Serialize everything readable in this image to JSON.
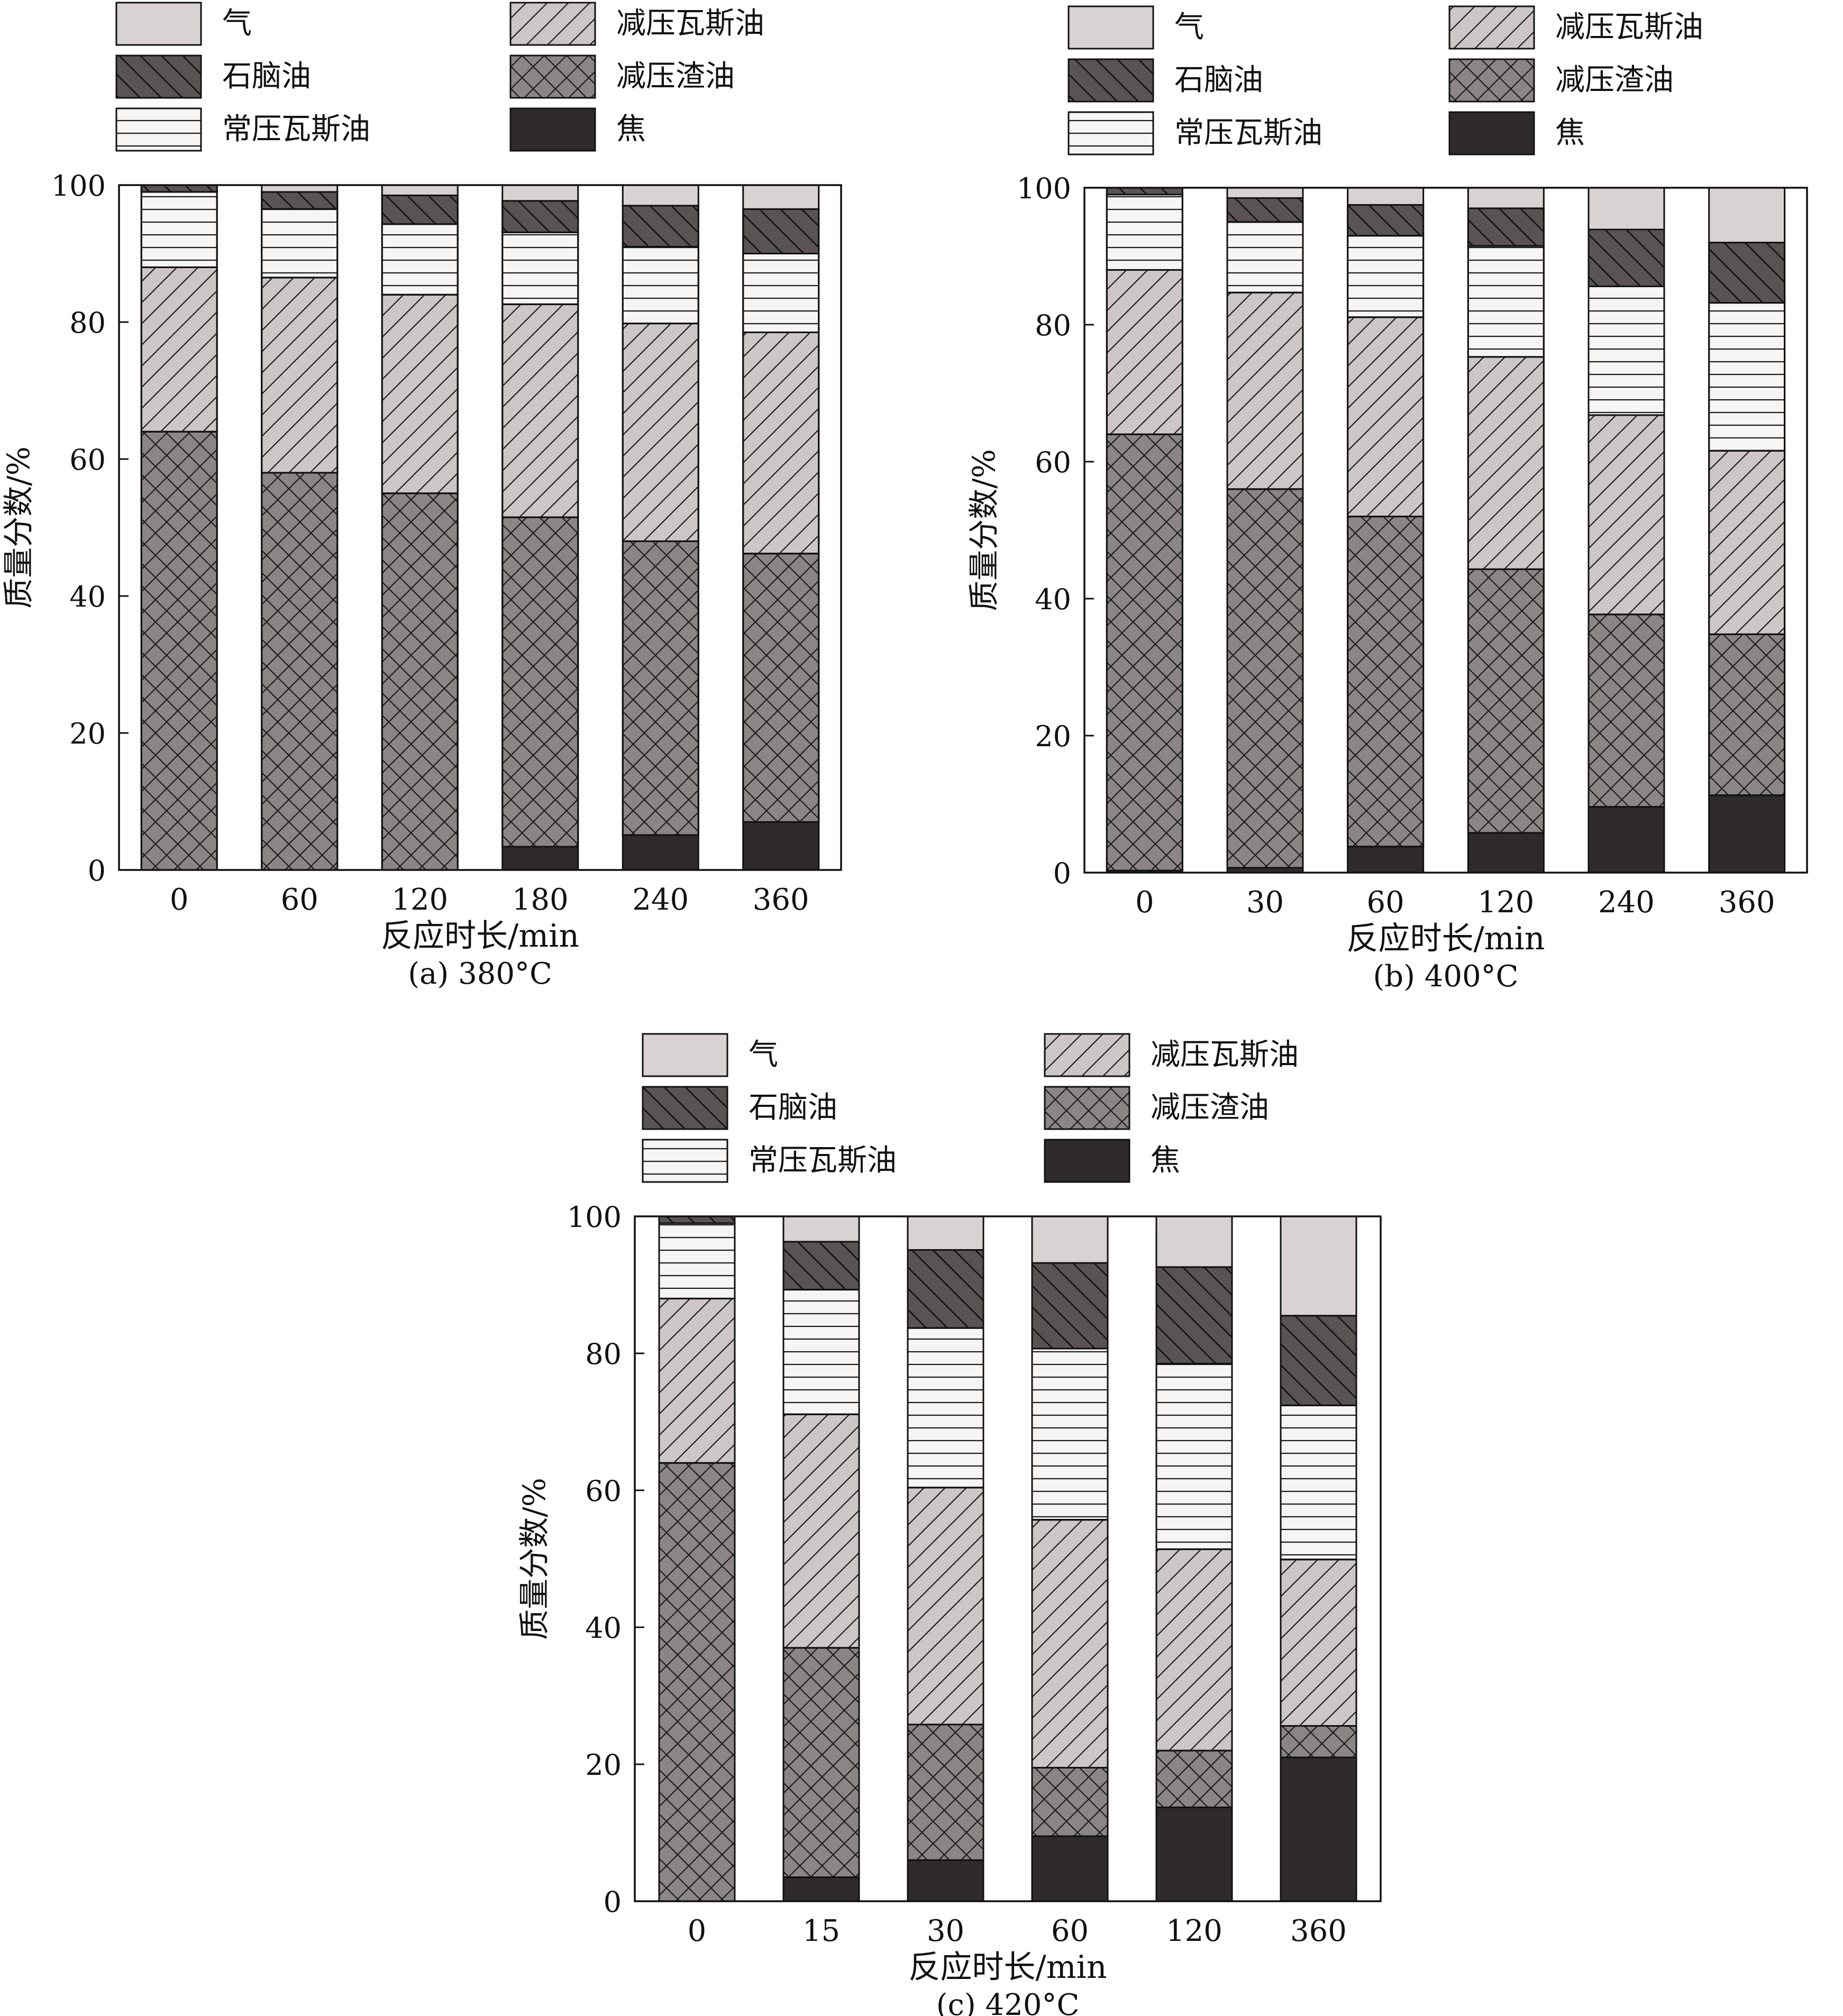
{
  "legend": [
    {
      "key": "coke",
      "label": "焦",
      "color": "#2f2b2c",
      "pattern": "solid"
    },
    {
      "key": "vr",
      "label": "减压渣油",
      "color": "#8c8586",
      "pattern": "cross-hatch"
    },
    {
      "key": "vgo",
      "label": "减压瓦斯油",
      "color": "#cdc6c7",
      "pattern": "diagonal-up"
    },
    {
      "key": "ago",
      "label": "常压瓦斯油",
      "color": "#f7f4f4",
      "pattern": "horizontal"
    },
    {
      "key": "naphtha",
      "label": "石脑油",
      "color": "#5a5354",
      "pattern": "diagonal-down"
    },
    {
      "key": "gas",
      "label": "气",
      "color": "#d9d2d3",
      "pattern": "solid"
    }
  ],
  "chart_data": [
    {
      "type": "stacked-bar",
      "caption": "(a) 380°C",
      "xlabel": "反应时长/min",
      "ylabel": "质量分数/%",
      "ylim": [
        0,
        100
      ],
      "yticks": [
        0,
        20,
        40,
        60,
        80,
        100
      ],
      "categories": [
        "0",
        "60",
        "120",
        "180",
        "240",
        "360"
      ],
      "series": [
        {
          "key": "coke",
          "name": "焦",
          "values": [
            0,
            0,
            0,
            3.4,
            5.1,
            7.0
          ]
        },
        {
          "key": "vr",
          "name": "减压渣油",
          "values": [
            64.0,
            58.0,
            55.0,
            48.1,
            42.9,
            39.2
          ]
        },
        {
          "key": "vgo",
          "name": "减压瓦斯油",
          "values": [
            24.0,
            28.5,
            29.0,
            31.1,
            31.8,
            32.3
          ]
        },
        {
          "key": "ago",
          "name": "常压瓦斯油",
          "values": [
            11.0,
            10.0,
            10.3,
            10.5,
            11.2,
            11.5
          ]
        },
        {
          "key": "naphtha",
          "name": "石脑油",
          "values": [
            1.0,
            2.5,
            4.2,
            4.6,
            6.0,
            6.5
          ]
        },
        {
          "key": "gas",
          "name": "气",
          "values": [
            0,
            1.0,
            1.5,
            2.3,
            3.0,
            3.5
          ]
        }
      ]
    },
    {
      "type": "stacked-bar",
      "caption": "(b) 400°C",
      "xlabel": "反应时长/min",
      "ylabel": "质量分数/%",
      "ylim": [
        0,
        100
      ],
      "yticks": [
        0,
        20,
        40,
        60,
        80,
        100
      ],
      "categories": [
        "0",
        "30",
        "60",
        "120",
        "240",
        "360"
      ],
      "series": [
        {
          "key": "coke",
          "name": "焦",
          "values": [
            0.3,
            0.7,
            3.8,
            5.8,
            9.6,
            11.3
          ]
        },
        {
          "key": "vr",
          "name": "减压渣油",
          "values": [
            63.7,
            55.3,
            48.2,
            38.5,
            28.1,
            23.5
          ]
        },
        {
          "key": "vgo",
          "name": "减压瓦斯油",
          "values": [
            24.0,
            28.7,
            29.1,
            31.0,
            29.1,
            26.8
          ]
        },
        {
          "key": "ago",
          "name": "常压瓦斯油",
          "values": [
            11.0,
            10.3,
            11.9,
            16.2,
            18.8,
            21.6
          ]
        },
        {
          "key": "naphtha",
          "name": "石脑油",
          "values": [
            1.0,
            3.5,
            4.5,
            5.5,
            8.3,
            8.8
          ]
        },
        {
          "key": "gas",
          "name": "气",
          "values": [
            0,
            1.5,
            2.5,
            3.0,
            6.1,
            8.0
          ]
        }
      ]
    },
    {
      "type": "stacked-bar",
      "caption": "(c) 420°C",
      "xlabel": "反应时长/min",
      "ylabel": "质量分数/%",
      "ylim": [
        0,
        100
      ],
      "yticks": [
        0,
        20,
        40,
        60,
        80,
        100
      ],
      "categories": [
        "0",
        "15",
        "30",
        "60",
        "120",
        "360"
      ],
      "series": [
        {
          "key": "coke",
          "name": "焦",
          "values": [
            0,
            3.5,
            6.0,
            9.5,
            13.7,
            21.0
          ]
        },
        {
          "key": "vr",
          "name": "减压渣油",
          "values": [
            64.0,
            33.5,
            19.8,
            10.0,
            8.3,
            4.6
          ]
        },
        {
          "key": "vgo",
          "name": "减压瓦斯油",
          "values": [
            24.0,
            34.1,
            34.6,
            36.2,
            29.4,
            24.3
          ]
        },
        {
          "key": "ago",
          "name": "常压瓦斯油",
          "values": [
            11.0,
            18.2,
            23.3,
            25.0,
            27.1,
            22.5
          ]
        },
        {
          "key": "naphtha",
          "name": "石脑油",
          "values": [
            1.0,
            7.0,
            11.4,
            12.5,
            14.1,
            13.1
          ]
        },
        {
          "key": "gas",
          "name": "气",
          "values": [
            0,
            3.7,
            4.9,
            6.8,
            7.4,
            14.5
          ]
        }
      ]
    }
  ]
}
